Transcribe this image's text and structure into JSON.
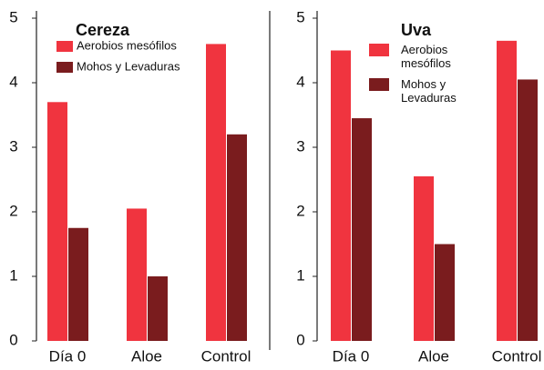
{
  "chart_data": [
    {
      "type": "bar",
      "title": "Cereza",
      "categories": [
        "Día 0",
        "Aloe",
        "Control"
      ],
      "series": [
        {
          "name": "Aerobios mesófilos",
          "color": "#f0343f",
          "values": [
            3.7,
            2.05,
            4.6
          ]
        },
        {
          "name": "Mohos y Levaduras",
          "color": "#7a1c1e",
          "values": [
            1.75,
            1.0,
            3.2
          ]
        }
      ],
      "ylim": [
        0,
        5
      ],
      "yticks": [
        0,
        1,
        2,
        3,
        4,
        5
      ]
    },
    {
      "type": "bar",
      "title": "Uva",
      "categories": [
        "Día 0",
        "Aloe",
        "Control"
      ],
      "series": [
        {
          "name": "Aerobios mesófilos",
          "color": "#f0343f",
          "values": [
            4.5,
            2.55,
            4.65
          ]
        },
        {
          "name": "Mohos y Levaduras",
          "color": "#7a1c1e",
          "values": [
            3.45,
            1.5,
            4.05
          ]
        }
      ],
      "ylim": [
        0,
        5
      ],
      "yticks": [
        0,
        1,
        2,
        3,
        4,
        5
      ]
    }
  ]
}
